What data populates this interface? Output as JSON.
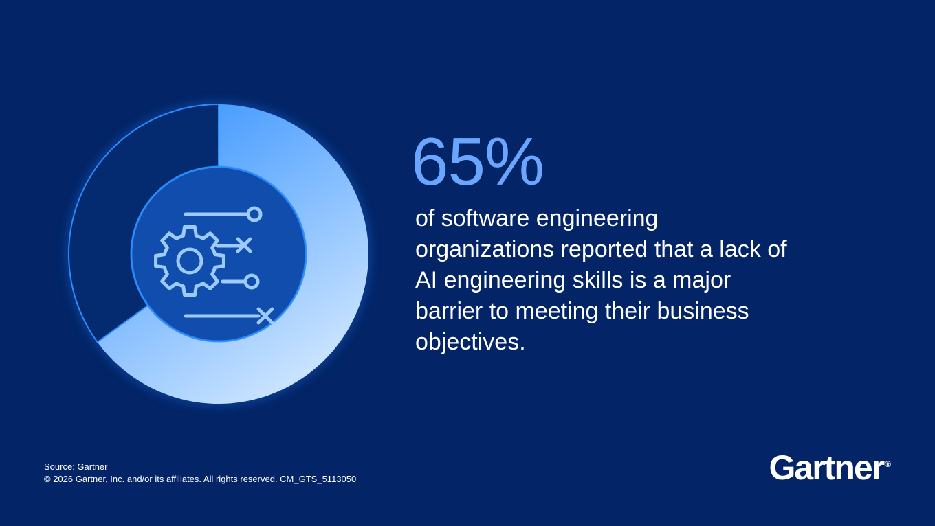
{
  "chart_data": {
    "type": "pie",
    "variant": "donut",
    "slices": [
      {
        "label": "",
        "value": 65
      },
      {
        "label": "",
        "value": 35
      }
    ],
    "start_at": "top",
    "direction": "clockwise",
    "title": ""
  },
  "stat": {
    "value": "65%",
    "description": "of software engineering organizations reported that a lack of AI engineering skills is a major barrier to meeting their business objectives."
  },
  "footer": {
    "source": "Source: Gartner",
    "copyright": "© 2026 Gartner, Inc. and/or its affiliates. All rights reserved. CM_GTS_5113050"
  },
  "brand": {
    "logo_text": "Gartner",
    "trademark": "®"
  },
  "icons": {
    "center": "gear-workflow-icon"
  },
  "colors": {
    "background": "#032466",
    "accent_dark": "#2a8cff",
    "accent_light": "#c9e3ff",
    "stat_color": "#6aa6ff",
    "empty_slice": "#042a70",
    "icon_color": "#9dcaff"
  }
}
